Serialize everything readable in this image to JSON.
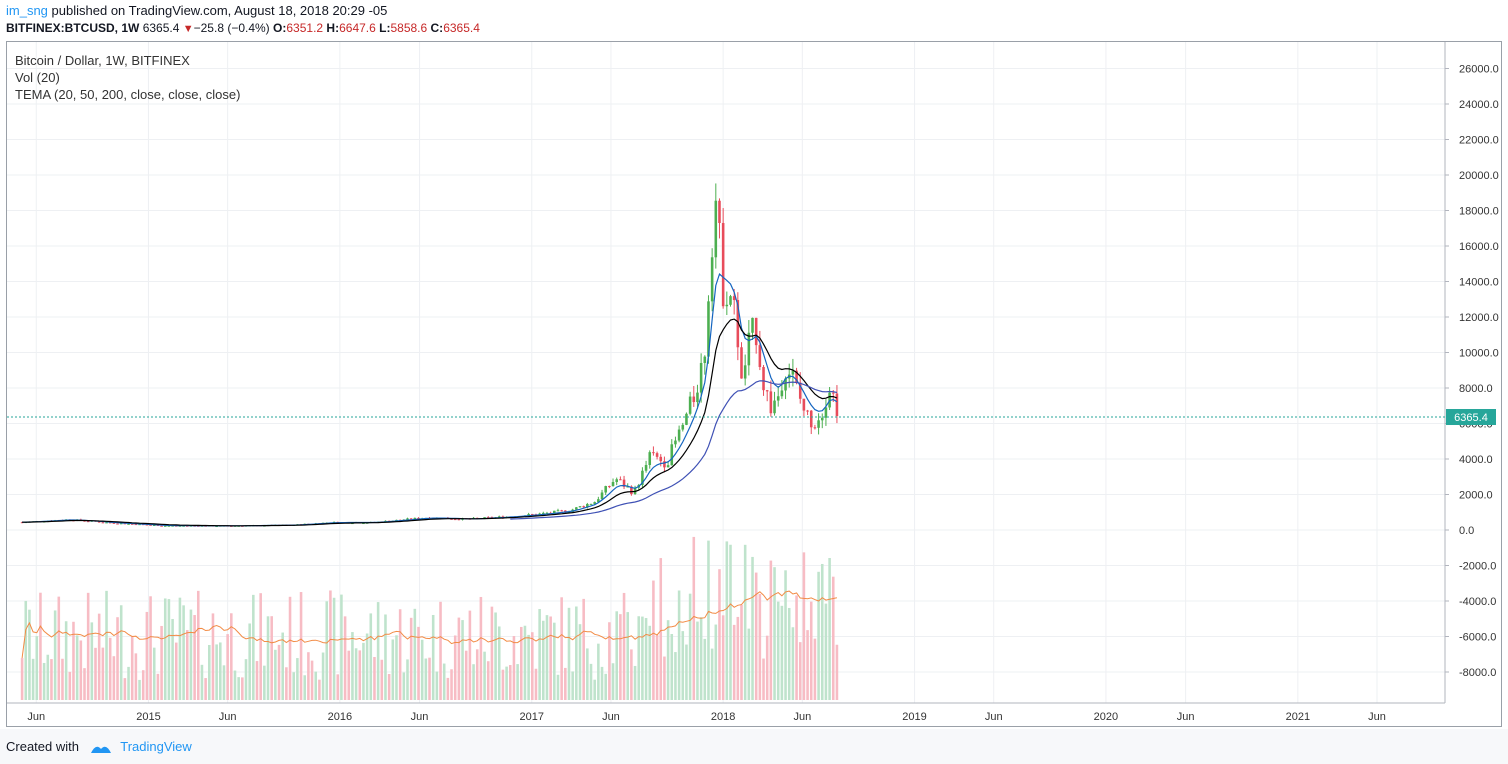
{
  "header": {
    "user": "im_sng",
    "published": "published on TradingView.com, August 18, 2018 20:29 -05",
    "symbol": "BITFINEX:BTCUSD, 1W",
    "last": "6365.4",
    "change_arrow": "▼",
    "change": "−25.8 (−0.4%)",
    "o_label": "O:",
    "o": "6351.2",
    "h_label": "H:",
    "h": "6647.6",
    "l_label": "L:",
    "l": "5858.6",
    "c_label": "C:",
    "c": "6365.4"
  },
  "legend": {
    "series_title": "Bitcoin / Dollar, 1W, BITFINEX",
    "vol": "Vol (20)",
    "tema": "TEMA (20, 50, 200, close, close, close)"
  },
  "price_label": "6365.4",
  "footer": {
    "created_with": "Created with",
    "brand": "TradingView"
  },
  "colors": {
    "up": "#4caf50",
    "down": "#e84c5b",
    "vol_up": "#bfe3cc",
    "vol_down": "#f7bcc4",
    "tema20": "#1565c0",
    "tema50": "#000000",
    "tema200": "#3f51b5",
    "vol_ma": "#f28b45",
    "price_line": "#26a69a"
  },
  "chart_data": {
    "type": "candlestick",
    "title": "Bitcoin / Dollar, 1W, BITFINEX",
    "y_ticks": [
      "26000.0",
      "24000.0",
      "22000.0",
      "20000.0",
      "18000.0",
      "16000.0",
      "14000.0",
      "12000.0",
      "10000.0",
      "8000.0",
      "6000.0",
      "4000.0",
      "2000.0",
      "0.0",
      "-2000.0",
      "-4000.0",
      "-6000.0",
      "-8000.0"
    ],
    "x_ticks": [
      "Jun",
      "2015",
      "Jun",
      "2016",
      "Jun",
      "2017",
      "Jun",
      "2018",
      "Jun",
      "2019",
      "Jun",
      "2020",
      "Jun",
      "2021",
      "Jun"
    ],
    "ylim": [
      -9000,
      27000
    ],
    "last_price": 6365.4,
    "candles_close": [
      {
        "date": "2014-05-05",
        "close": 440
      },
      {
        "date": "2014-08-01",
        "close": 590
      },
      {
        "date": "2014-11-01",
        "close": 380
      },
      {
        "date": "2015-02-01",
        "close": 240
      },
      {
        "date": "2015-06-01",
        "close": 230
      },
      {
        "date": "2015-10-01",
        "close": 280
      },
      {
        "date": "2015-12-15",
        "close": 430
      },
      {
        "date": "2016-03-01",
        "close": 420
      },
      {
        "date": "2016-06-15",
        "close": 700
      },
      {
        "date": "2016-09-01",
        "close": 610
      },
      {
        "date": "2016-12-01",
        "close": 780
      },
      {
        "date": "2017-01-15",
        "close": 900
      },
      {
        "date": "2017-03-15",
        "close": 1100
      },
      {
        "date": "2017-05-01",
        "close": 1600
      },
      {
        "date": "2017-06-10",
        "close": 2900
      },
      {
        "date": "2017-07-15",
        "close": 2100
      },
      {
        "date": "2017-08-15",
        "close": 4200
      },
      {
        "date": "2017-09-15",
        "close": 3800
      },
      {
        "date": "2017-10-15",
        "close": 5800
      },
      {
        "date": "2017-11-05",
        "close": 7400
      },
      {
        "date": "2017-11-26",
        "close": 9800
      },
      {
        "date": "2017-12-10",
        "close": 16500
      },
      {
        "date": "2017-12-17",
        "close": 19000
      },
      {
        "date": "2017-12-31",
        "close": 13800
      },
      {
        "date": "2018-01-14",
        "close": 13500
      },
      {
        "date": "2018-01-28",
        "close": 11300
      },
      {
        "date": "2018-02-04",
        "close": 8000
      },
      {
        "date": "2018-02-18",
        "close": 10300
      },
      {
        "date": "2018-03-04",
        "close": 11500
      },
      {
        "date": "2018-03-18",
        "close": 8400
      },
      {
        "date": "2018-04-01",
        "close": 6900
      },
      {
        "date": "2018-04-15",
        "close": 7500
      },
      {
        "date": "2018-04-29",
        "close": 9400
      },
      {
        "date": "2018-05-13",
        "close": 8700
      },
      {
        "date": "2018-05-27",
        "close": 7400
      },
      {
        "date": "2018-06-10",
        "close": 6400
      },
      {
        "date": "2018-06-24",
        "close": 6100
      },
      {
        "date": "2018-07-08",
        "close": 6700
      },
      {
        "date": "2018-07-22",
        "close": 8200
      },
      {
        "date": "2018-08-05",
        "close": 7000
      },
      {
        "date": "2018-08-12",
        "close": 6365
      }
    ]
  }
}
